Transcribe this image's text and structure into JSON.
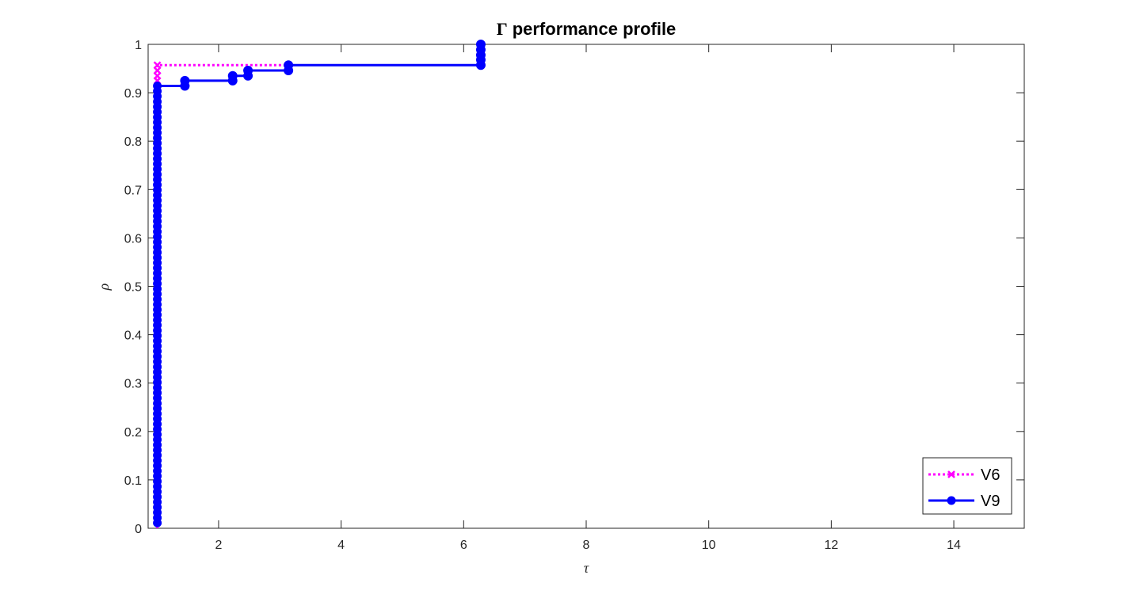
{
  "chart_data": {
    "type": "line",
    "title": "Γ performance profile",
    "title_symbol": "Γ",
    "title_text": "performance profile",
    "xlabel": "τ",
    "ylabel": "ρ",
    "xlim": [
      0.85,
      15.15
    ],
    "ylim": [
      0,
      1
    ],
    "xticks": [
      2,
      4,
      6,
      8,
      10,
      12,
      14
    ],
    "yticks": [
      0,
      0.1,
      0.2,
      0.3,
      0.4,
      0.5,
      0.6,
      0.7,
      0.8,
      0.9,
      1
    ],
    "grid": false,
    "legend_position": "bottom-right",
    "series": [
      {
        "name": "V6",
        "color": "#ff00ff",
        "line_style": "dotted",
        "marker": "x",
        "points": [
          [
            1.0,
            0.0
          ],
          [
            1.0,
            0.957
          ],
          [
            3.14,
            0.957
          ]
        ],
        "marker_points": [
          [
            1.0,
            0.925
          ],
          [
            1.0,
            0.935
          ],
          [
            1.0,
            0.946
          ],
          [
            1.0,
            0.957
          ],
          [
            3.14,
            0.957
          ]
        ]
      },
      {
        "name": "V9",
        "color": "#0000ff",
        "line_style": "solid",
        "marker": "circle",
        "points": [
          [
            1.0,
            0.011
          ],
          [
            1.0,
            0.914
          ],
          [
            1.45,
            0.914
          ],
          [
            1.45,
            0.925
          ],
          [
            2.23,
            0.925
          ],
          [
            2.23,
            0.935
          ],
          [
            2.48,
            0.935
          ],
          [
            2.48,
            0.946
          ],
          [
            3.14,
            0.946
          ],
          [
            3.14,
            0.957
          ],
          [
            6.28,
            0.957
          ],
          [
            6.28,
            1.0
          ]
        ],
        "marker_points": [
          [
            1.45,
            0.914
          ],
          [
            1.45,
            0.925
          ],
          [
            2.23,
            0.925
          ],
          [
            2.23,
            0.935
          ],
          [
            2.48,
            0.935
          ],
          [
            2.48,
            0.946
          ],
          [
            3.14,
            0.946
          ],
          [
            3.14,
            0.957
          ],
          [
            6.28,
            0.957
          ],
          [
            6.28,
            0.968
          ],
          [
            6.28,
            0.978
          ],
          [
            6.28,
            0.989
          ],
          [
            6.28,
            1.0
          ]
        ],
        "vertical_marker_column": {
          "x": 1.0,
          "y_from": 0.011,
          "y_to": 0.914,
          "step": 0.01075
        }
      }
    ]
  }
}
